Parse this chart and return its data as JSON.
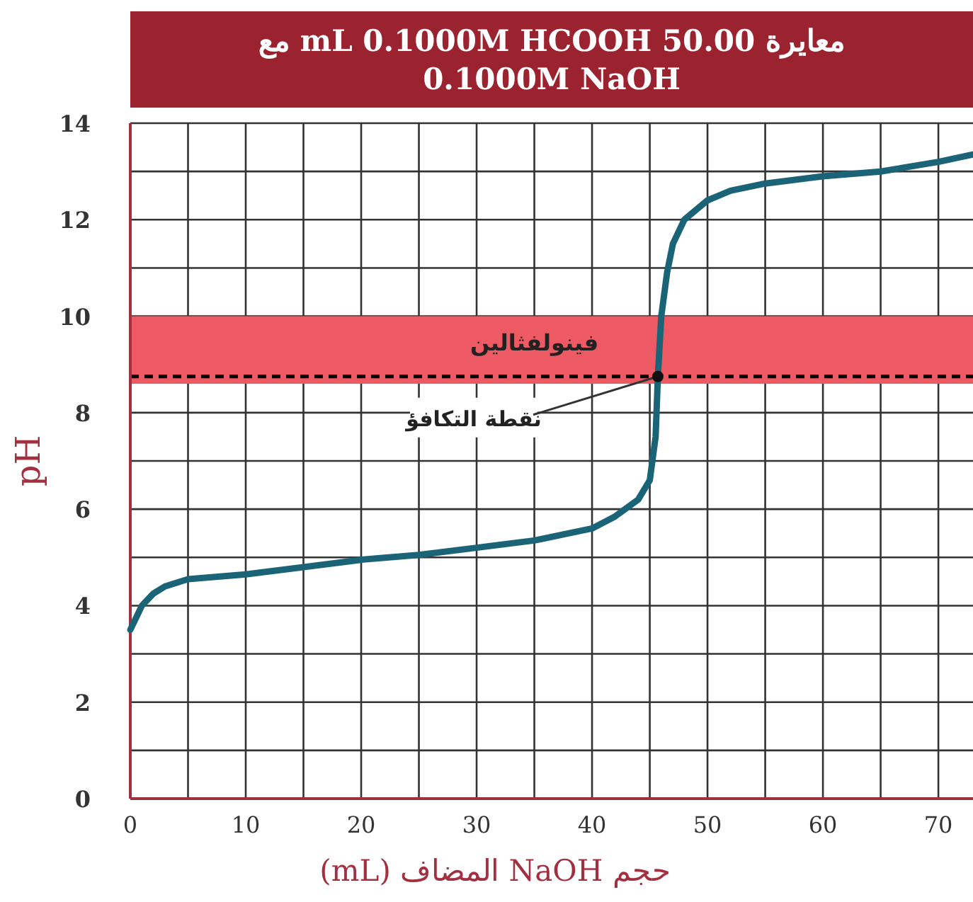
{
  "chart_data": {
    "type": "line",
    "title": "معايرة 50.00 mL 0.1000M HCOOH مع 0.1000M NaOH",
    "xlabel": "حجم NaOH المضاف (mL)",
    "ylabel": "pH",
    "x": [
      0,
      1,
      2,
      3,
      5,
      10,
      15,
      20,
      25,
      30,
      35,
      40,
      42,
      44,
      45,
      45.5,
      45.7,
      46,
      46.5,
      47,
      48,
      50,
      52,
      55,
      60,
      65,
      70,
      73
    ],
    "series": [
      {
        "color": "#1b6478",
        "values": [
          3.5,
          4.0,
          4.25,
          4.4,
          4.55,
          4.65,
          4.8,
          4.95,
          5.05,
          5.2,
          5.35,
          5.6,
          5.85,
          6.2,
          6.6,
          7.5,
          8.75,
          10,
          10.9,
          11.5,
          12.0,
          12.4,
          12.6,
          12.75,
          12.9,
          13.0,
          13.2,
          13.35
        ]
      }
    ],
    "xlim": [
      0,
      73
    ],
    "ylim": [
      0,
      14
    ],
    "xticks": [
      0,
      {
        "value": 5,
        "label": null
      },
      10,
      {
        "value": 15,
        "label": null
      },
      20,
      {
        "value": 25,
        "label": null
      },
      30,
      {
        "value": 35,
        "label": null
      },
      40,
      {
        "value": 45,
        "label": null
      },
      50,
      {
        "value": 55,
        "label": null
      },
      60,
      {
        "value": 65,
        "label": null
      },
      70
    ],
    "yticks": [
      0,
      {
        "value": 1,
        "label": null
      },
      2,
      {
        "value": 3,
        "label": null
      },
      4,
      {
        "value": 5,
        "label": null
      },
      6,
      {
        "value": 7,
        "label": null
      },
      8,
      10,
      {
        "value": 11,
        "label": null
      },
      12,
      {
        "value": 13,
        "label": null
      },
      14
    ],
    "grid": true,
    "marker": "none",
    "line_style": "solid",
    "bands": [
      {
        "axis": "y",
        "from": 8.6,
        "to": 10,
        "label": "فينولفثالين",
        "color": "#ee5a63"
      }
    ],
    "ref_lines": [
      {
        "axis": "y",
        "value": 8.75,
        "color": "#000000",
        "line_style": "dashed"
      }
    ],
    "annotations": [
      {
        "text": "نقطة التكافؤ",
        "x": 45.7,
        "y": 8.75
      }
    ]
  }
}
